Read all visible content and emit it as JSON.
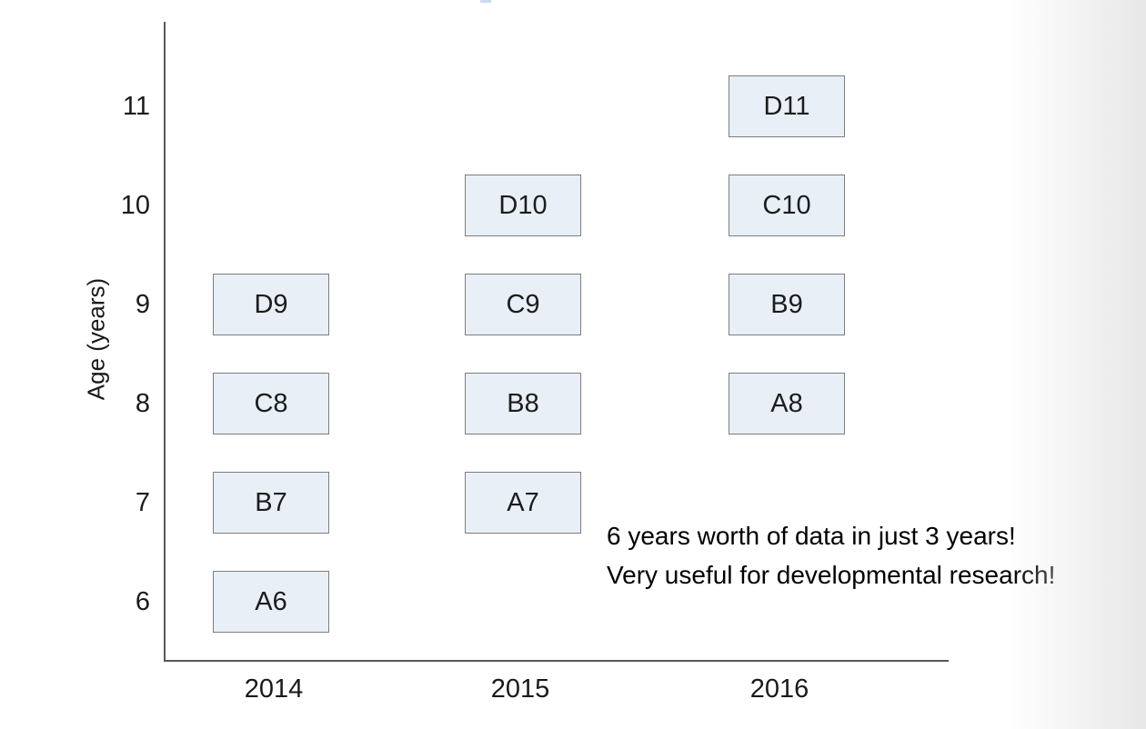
{
  "chart_data": {
    "type": "scatter",
    "title": "",
    "xlabel": "",
    "ylabel": "Age (years)",
    "x_categories": [
      "2014",
      "2015",
      "2016"
    ],
    "y_ticks": [
      "11",
      "10",
      "9",
      "8",
      "7",
      "6"
    ],
    "y_axis_range_years": [
      6,
      11
    ],
    "grid": false,
    "legend": "none",
    "boxes": [
      {
        "label": "A6",
        "year": "2014",
        "age": 6
      },
      {
        "label": "B7",
        "year": "2014",
        "age": 7
      },
      {
        "label": "C8",
        "year": "2014",
        "age": 8
      },
      {
        "label": "D9",
        "year": "2014",
        "age": 9
      },
      {
        "label": "A7",
        "year": "2015",
        "age": 7
      },
      {
        "label": "B8",
        "year": "2015",
        "age": 8
      },
      {
        "label": "C9",
        "year": "2015",
        "age": 9
      },
      {
        "label": "D10",
        "year": "2015",
        "age": 10
      },
      {
        "label": "A8",
        "year": "2016",
        "age": 8
      },
      {
        "label": "B9",
        "year": "2016",
        "age": 9
      },
      {
        "label": "C10",
        "year": "2016",
        "age": 10
      },
      {
        "label": "D11",
        "year": "2016",
        "age": 11
      }
    ],
    "annotation": {
      "line1": "6 years worth of data in just 3 years!",
      "line2": "Very useful for developmental research!"
    },
    "colors": {
      "box_fill": "#e8eff7",
      "box_border": "#7d7d7d",
      "axis": "#58585a",
      "text": "#1a1a1a",
      "page_edge": "#e7e7e7"
    }
  }
}
